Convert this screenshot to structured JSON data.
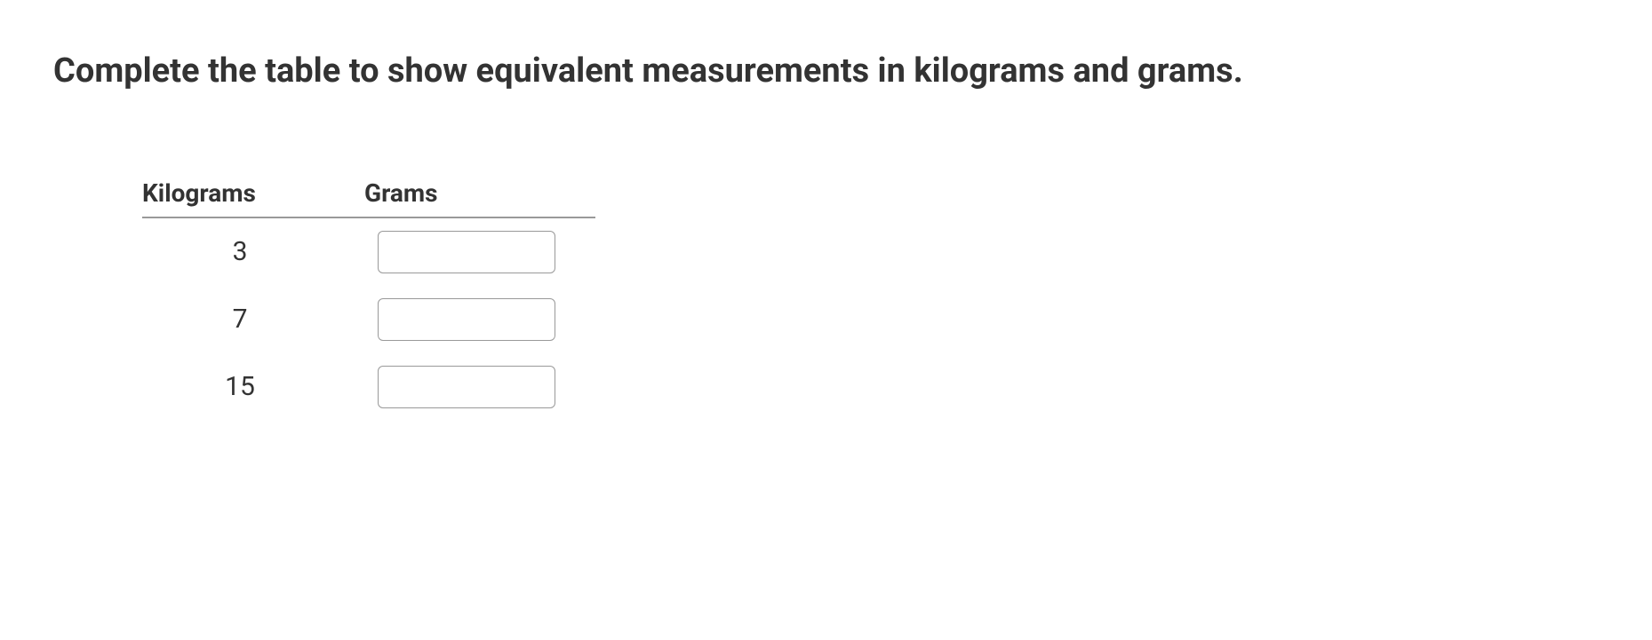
{
  "question": {
    "prompt": "Complete the table to show equivalent measurements in kilograms and grams."
  },
  "table": {
    "columns": [
      "Kilograms",
      "Grams"
    ],
    "rows": [
      {
        "kilograms": "3",
        "grams": ""
      },
      {
        "kilograms": "7",
        "grams": ""
      },
      {
        "kilograms": "15",
        "grams": ""
      }
    ]
  },
  "styling": {
    "text_color": "#333333",
    "background_color": "#ffffff",
    "border_color": "#999999",
    "heading_fontsize": 38,
    "table_header_fontsize": 28,
    "cell_fontsize": 30,
    "input_width": 200,
    "input_height": 48,
    "input_border_radius": 6
  }
}
